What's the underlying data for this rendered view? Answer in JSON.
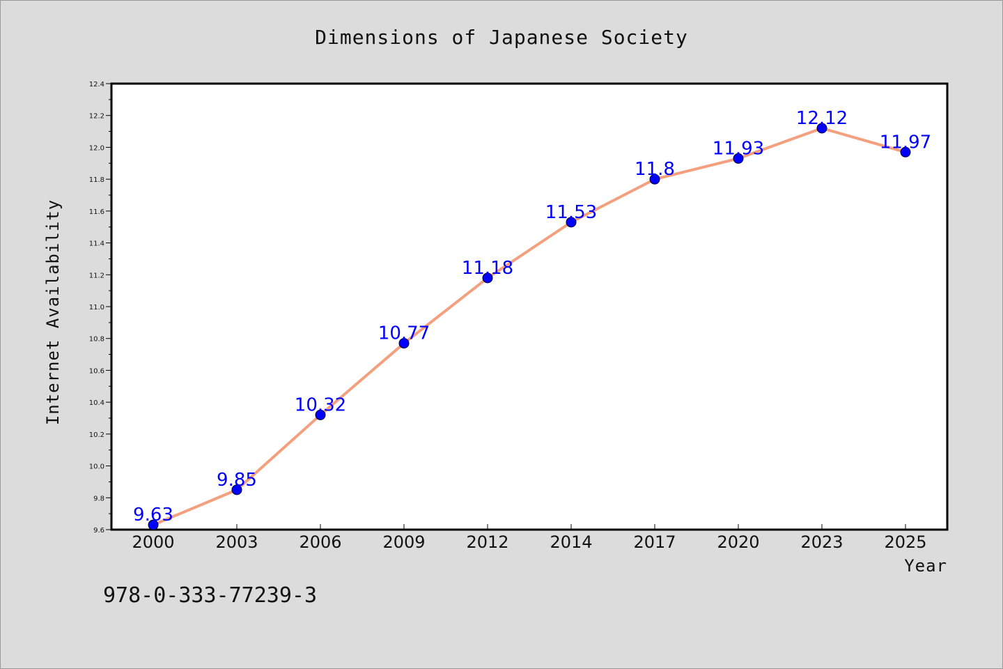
{
  "chart_data": {
    "type": "line",
    "title": "Dimensions of Japanese Society",
    "xlabel": "Year",
    "ylabel": "Internet Availability",
    "categories": [
      "2000",
      "2003",
      "2006",
      "2009",
      "2012",
      "2014",
      "2017",
      "2020",
      "2023",
      "2025"
    ],
    "series": [
      {
        "values": [
          9.63,
          9.85,
          10.32,
          10.77,
          11.18,
          11.53,
          11.8,
          11.93,
          12.12,
          11.97
        ],
        "data_labels": [
          "9.63",
          "9.85",
          "10.32",
          "10.77",
          "11.18",
          "11.53",
          "11.8",
          "11.93",
          "12.12",
          "11.97"
        ]
      }
    ],
    "ylim": [
      9.6,
      12.4
    ],
    "yticks": [
      "9.6",
      "9.8",
      "10.0",
      "10.2",
      "10.4",
      "10.6",
      "10.8",
      "11.0",
      "11.2",
      "11.4",
      "11.6",
      "11.8",
      "12.0",
      "12.2",
      "12.4"
    ],
    "grid": false,
    "colors": {
      "line": "#f4a07e",
      "marker": "#0000ff",
      "data_label": "#0000ff",
      "background": "#dcdcdc",
      "plot_background": "#ffffff"
    }
  },
  "footer": {
    "isbn": "978-0-333-77239-3"
  }
}
